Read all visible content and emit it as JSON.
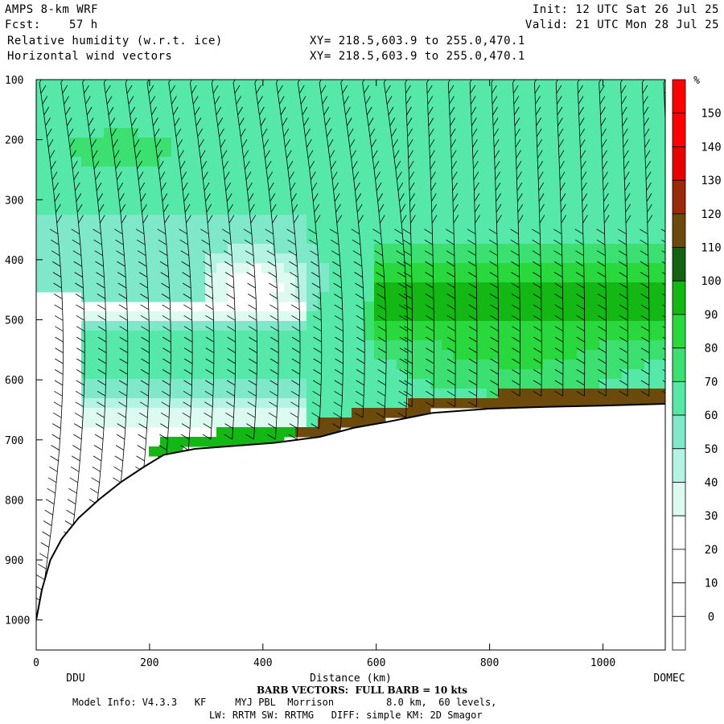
{
  "header": {
    "model": "AMPS 8-km WRF",
    "fcst_label": "Fcst:",
    "fcst_value": "57 h",
    "init": "Init: 12 UTC Sat 26 Jul 25",
    "valid": "Valid: 21 UTC Mon 28 Jul 25",
    "field1": "Relative humidity (w.r.t. ice)",
    "field2": "Horizontal wind vectors",
    "xy1": "XY= 218.5,603.9 to 255.0,470.1",
    "xy2": "XY= 218.5,603.9 to 255.0,470.1"
  },
  "footer": {
    "barb_note": "BARB VECTORS:  FULL BARB = 10 kts",
    "model_info": "Model Info: V4.3.3   KF     MYJ PBL  Morrison         8.0 km,  60 levels,",
    "model_info2": "LW: RRTM SW: RRTMG   DIFF: simple KM: 2D Smagor"
  },
  "chart_data": {
    "type": "heatmap",
    "title": "Relative humidity (w.r.t. ice)",
    "xlabel": "Distance (km)",
    "ylabel": "",
    "xlim": [
      0,
      1110
    ],
    "ylim": [
      1050,
      100
    ],
    "x_ticks": [
      0,
      200,
      400,
      600,
      800,
      1000
    ],
    "y_ticks": [
      100,
      200,
      300,
      400,
      500,
      600,
      700,
      800,
      900,
      1000
    ],
    "endpoints": {
      "left": "DDU",
      "right": "DOMEC"
    },
    "colorbar": {
      "unit": "%",
      "levels": [
        0,
        10,
        20,
        30,
        40,
        50,
        60,
        70,
        80,
        90,
        100,
        110,
        120,
        130,
        140,
        150
      ],
      "colors": [
        "#ffffff",
        "#ffffff",
        "#ffffff",
        "#ddfaf0",
        "#b4f2e2",
        "#7ee8c8",
        "#55e8a8",
        "#3ce070",
        "#28d83c",
        "#14b814",
        "#126212",
        "#6b4a0c",
        "#9a2a0a",
        "#e80000",
        "#ff0000",
        "#ff0000"
      ]
    },
    "terrain_surface_hpa": [
      [
        0,
        1000
      ],
      [
        10,
        950
      ],
      [
        25,
        900
      ],
      [
        45,
        865
      ],
      [
        75,
        830
      ],
      [
        110,
        800
      ],
      [
        150,
        770
      ],
      [
        190,
        745
      ],
      [
        225,
        725
      ],
      [
        280,
        715
      ],
      [
        350,
        710
      ],
      [
        420,
        705
      ],
      [
        500,
        695
      ],
      [
        560,
        680
      ],
      [
        620,
        670
      ],
      [
        700,
        655
      ],
      [
        800,
        648
      ],
      [
        900,
        645
      ],
      [
        1000,
        643
      ],
      [
        1110,
        640
      ]
    ],
    "wind_barbs_note": "Horizontal wind vectors shown as barbs along the cross-section"
  }
}
